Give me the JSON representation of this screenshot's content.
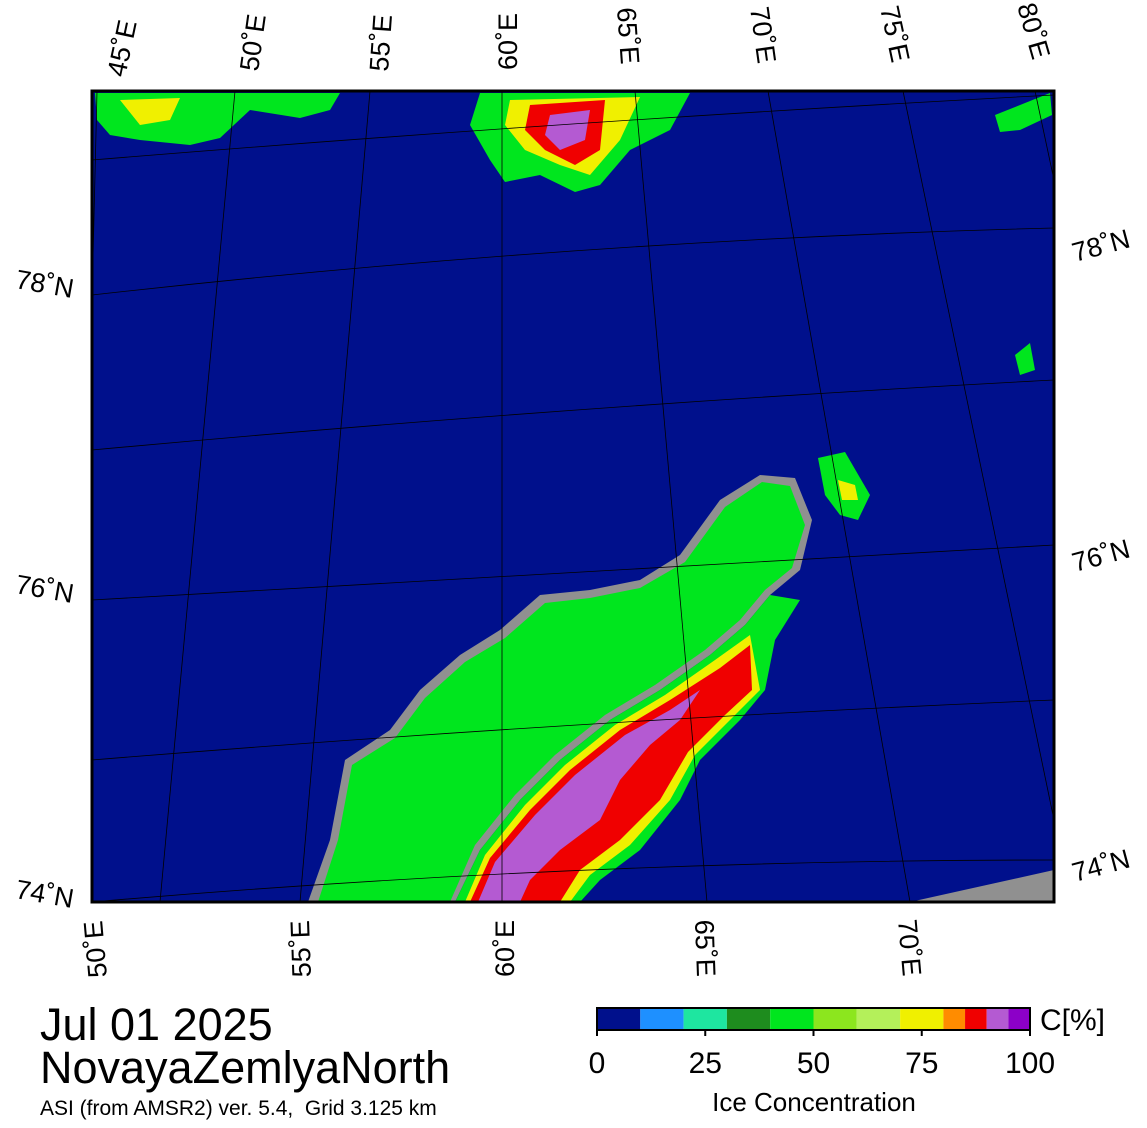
{
  "map": {
    "top_lon_labels": [
      "45˚E",
      "50˚E",
      "55˚E",
      "60˚E",
      "65˚E",
      "70˚E",
      "75˚E",
      "80˚E"
    ],
    "right_lat_labels": [
      "78˚N",
      "76˚N",
      "74˚N"
    ],
    "left_lat_labels": [
      "78˚N",
      "76˚N",
      "74˚N"
    ],
    "bottom_lon_labels": [
      "50˚E",
      "55˚E",
      "60˚E",
      "65˚E",
      "70˚E"
    ]
  },
  "date": "Jul 01 2025",
  "region": "NovayaZemlyaNorth",
  "subtitle": "ASI (from AMSR2) ver. 5.4,  Grid 3.125 km",
  "colorbar": {
    "unit": "C[%]",
    "label": "Ice Concentration",
    "bounds": [
      0,
      10,
      20,
      30,
      40,
      50,
      60,
      70,
      80,
      85,
      90,
      95,
      100
    ],
    "colors": [
      "#00108c",
      "#1e90ff",
      "#1ee6a0",
      "#1e8c1e",
      "#00e61e",
      "#8ce61e",
      "#b4f05a",
      "#f0f000",
      "#ff8c00",
      "#f00000",
      "#b45ad2",
      "#8c00c8"
    ],
    "ticks": [
      0,
      25,
      50,
      75,
      100
    ]
  }
}
